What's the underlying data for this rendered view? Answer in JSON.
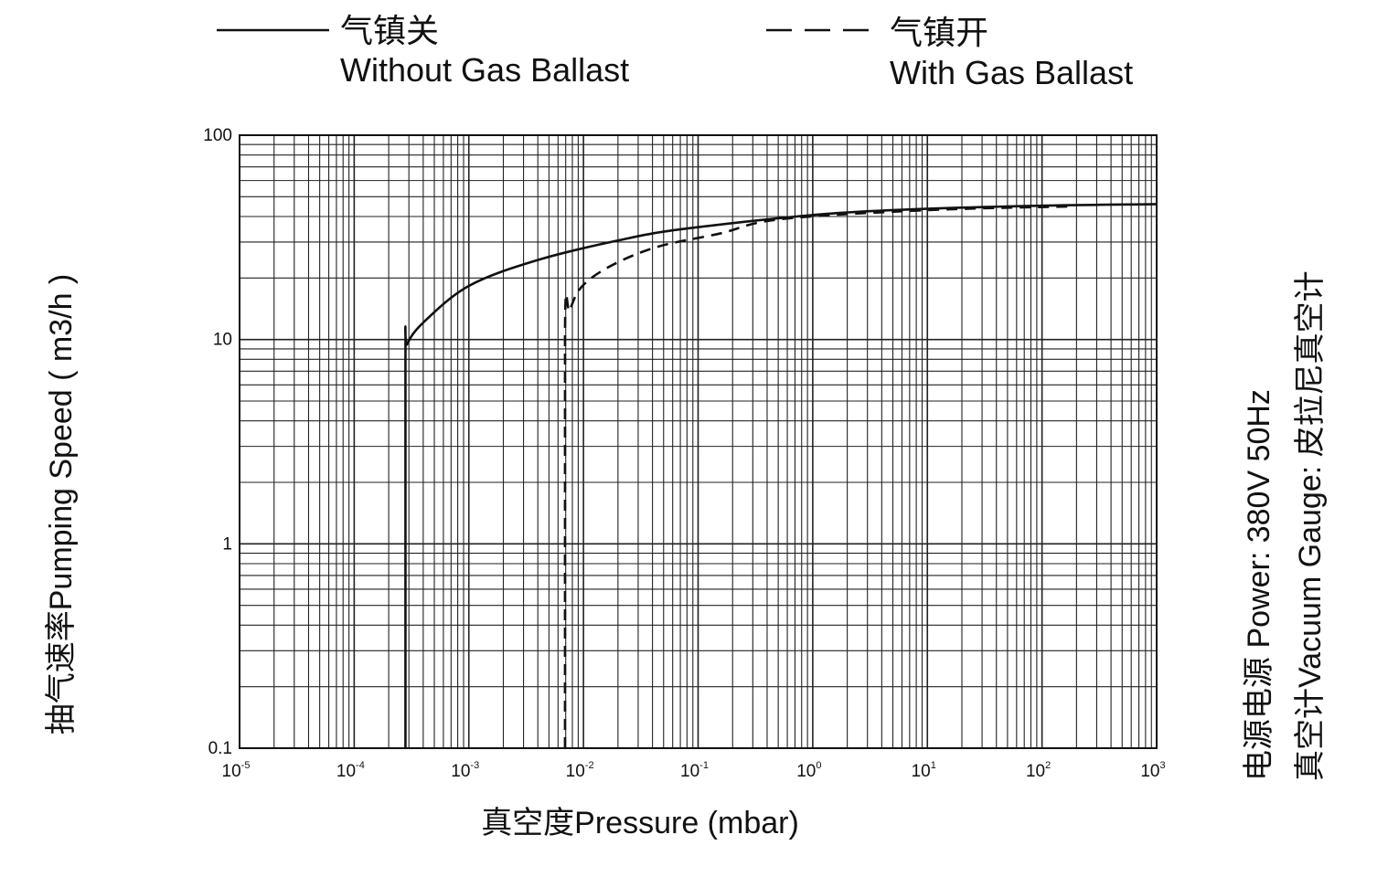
{
  "legend": {
    "solid_cn": "气镇关",
    "solid_en": "Without Gas Ballast",
    "dashed_cn": "气镇开",
    "dashed_en": "With Gas Ballast"
  },
  "side_notes": {
    "power": "电源电源  Power:  380V 50Hz",
    "gauge": "真空计Vacuum Gauge:  皮拉尼真空计"
  },
  "chart_data": {
    "type": "line",
    "title": "",
    "xlabel": "真空度Pressure (mbar)",
    "ylabel": "抽气速率Pumping Speed ( m3/h )",
    "x_scale": "log",
    "y_scale": "log",
    "xlim": [
      1e-05,
      1000
    ],
    "ylim": [
      0.1,
      100
    ],
    "grid": true,
    "legend_position": "top",
    "x_ticks": [
      {
        "base": "10",
        "exp": "-5"
      },
      {
        "base": "10",
        "exp": "-4"
      },
      {
        "base": "10",
        "exp": "-3"
      },
      {
        "base": "10",
        "exp": "-2"
      },
      {
        "base": "10",
        "exp": "-1"
      },
      {
        "base": "10",
        "exp": "0"
      },
      {
        "base": "10",
        "exp": "1"
      },
      {
        "base": "10",
        "exp": "2"
      },
      {
        "base": "10",
        "exp": "3"
      }
    ],
    "y_ticks": [
      "0.1",
      "1",
      "10",
      "100"
    ],
    "series": [
      {
        "name": "Without Gas Ballast",
        "style": "solid",
        "color": "#111111",
        "x": [
          0.00028,
          0.00028,
          0.00029,
          0.0004,
          0.001,
          0.0039,
          0.0204,
          0.082,
          1.77,
          48,
          1000
        ],
        "y": [
          0.1,
          8.0,
          9.5,
          12.1,
          18.3,
          24.4,
          30.6,
          35,
          41.7,
          44.8,
          46
        ]
      },
      {
        "name": "With Gas Ballast",
        "style": "dashed",
        "color": "#111111",
        "x": [
          0.0069,
          0.0069,
          0.0076,
          0.0098,
          0.018,
          0.045,
          0.154,
          0.52,
          10,
          174
        ],
        "y": [
          0.1,
          11.0,
          13.9,
          18.3,
          23.2,
          28.5,
          33,
          38.8,
          43,
          44.8
        ]
      }
    ]
  }
}
